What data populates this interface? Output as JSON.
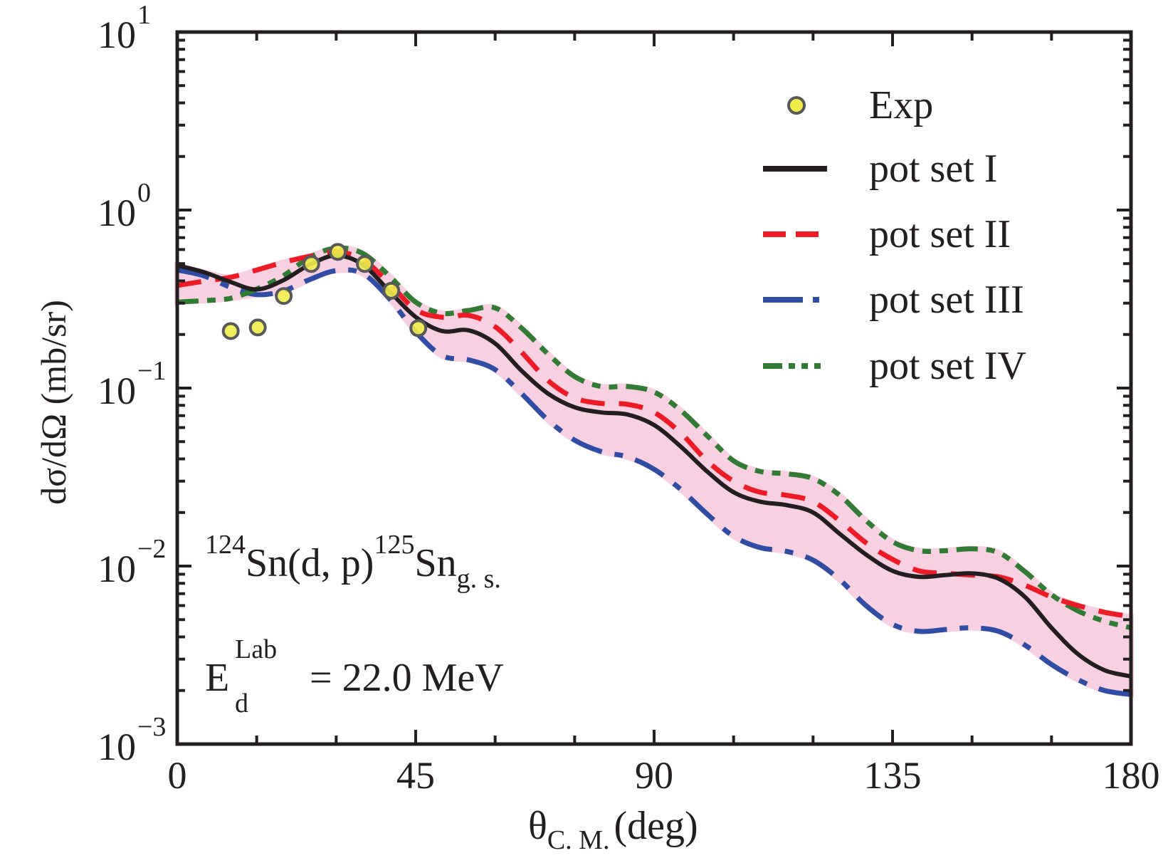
{
  "chart_data": {
    "type": "line",
    "title": "",
    "xlabel": {
      "main": "θ",
      "sub": "C. M.",
      "unit": "(deg)"
    },
    "ylabel": "dσ/dΩ (mb/sr)",
    "xlim": [
      0,
      180
    ],
    "ylim": [
      0.001,
      10
    ],
    "yscale": "log",
    "grid": false,
    "legend_position": "top-right",
    "x_ticks": [
      {
        "value": 0,
        "label": "0"
      },
      {
        "value": 45,
        "label": "45"
      },
      {
        "value": 90,
        "label": "90"
      },
      {
        "value": 135,
        "label": "135"
      },
      {
        "value": 180,
        "label": "180"
      }
    ],
    "y_ticks": [
      {
        "value": 10,
        "base": "10",
        "exp": "1"
      },
      {
        "value": 1,
        "base": "10",
        "exp": "0"
      },
      {
        "value": 0.1,
        "base": "10",
        "exp": "−1"
      },
      {
        "value": 0.01,
        "base": "10",
        "exp": "−2"
      },
      {
        "value": 0.001,
        "base": "10",
        "exp": "−3"
      }
    ],
    "annotations": {
      "reaction": {
        "pre_sup": "124",
        "main": "Sn(d, p)",
        "mid_sup": "125",
        "main2": "Sn",
        "sub": "g. s."
      },
      "energy": {
        "sym": "E",
        "sup": "Lab",
        "sub": "d",
        "value": "= 22.0 MeV"
      }
    },
    "band": {
      "description": "uncertainty band between pot set III and pot set IV",
      "color": "#f9d0e1"
    },
    "x": [
      0,
      5,
      10,
      15,
      20,
      25,
      30,
      35,
      40,
      45,
      50,
      55,
      60,
      65,
      70,
      75,
      80,
      85,
      90,
      95,
      100,
      105,
      110,
      115,
      120,
      125,
      130,
      135,
      140,
      145,
      150,
      155,
      160,
      165,
      170,
      175,
      180
    ],
    "series": [
      {
        "name": "pot set I",
        "style": "solid",
        "color": "#231f20",
        "values": [
          0.489,
          0.448,
          0.395,
          0.358,
          0.403,
          0.494,
          0.555,
          0.494,
          0.351,
          0.251,
          0.209,
          0.211,
          0.178,
          0.125,
          0.093,
          0.078,
          0.073,
          0.071,
          0.062,
          0.047,
          0.034,
          0.026,
          0.023,
          0.022,
          0.02,
          0.0152,
          0.0116,
          0.0094,
          0.0087,
          0.0089,
          0.0091,
          0.0085,
          0.0067,
          0.0045,
          0.0032,
          0.0026,
          0.0024
        ]
      },
      {
        "name": "pot set II",
        "style": "dashed",
        "color": "#ed1c24",
        "values": [
          0.377,
          0.398,
          0.419,
          0.46,
          0.508,
          0.55,
          0.582,
          0.528,
          0.388,
          0.276,
          0.25,
          0.256,
          0.221,
          0.159,
          0.11,
          0.088,
          0.082,
          0.081,
          0.073,
          0.056,
          0.039,
          0.03,
          0.026,
          0.025,
          0.023,
          0.018,
          0.0135,
          0.0109,
          0.0094,
          0.0091,
          0.0089,
          0.0087,
          0.0078,
          0.0067,
          0.006,
          0.0055,
          0.0052
        ]
      },
      {
        "name": "pot set III",
        "style": "dash-dot",
        "color": "#2e4ea5",
        "values": [
          0.461,
          0.427,
          0.369,
          0.335,
          0.351,
          0.407,
          0.457,
          0.44,
          0.319,
          0.207,
          0.152,
          0.144,
          0.127,
          0.093,
          0.066,
          0.051,
          0.044,
          0.041,
          0.035,
          0.027,
          0.0196,
          0.0147,
          0.0127,
          0.0121,
          0.0108,
          0.0084,
          0.006,
          0.0047,
          0.0043,
          0.0044,
          0.0045,
          0.0043,
          0.0036,
          0.0028,
          0.0023,
          0.002,
          0.0019
        ]
      },
      {
        "name": "pot set IV",
        "style": "dash-dot-dot",
        "color": "#2e7d32",
        "values": [
          0.304,
          0.31,
          0.319,
          0.36,
          0.427,
          0.543,
          0.611,
          0.571,
          0.427,
          0.304,
          0.263,
          0.273,
          0.282,
          0.217,
          0.155,
          0.116,
          0.102,
          0.102,
          0.095,
          0.075,
          0.054,
          0.039,
          0.034,
          0.033,
          0.031,
          0.025,
          0.018,
          0.0137,
          0.0122,
          0.0122,
          0.0125,
          0.0119,
          0.0093,
          0.0069,
          0.0056,
          0.0049,
          0.0045
        ]
      }
    ],
    "experimental": {
      "name": "Exp",
      "fill": "#f2ec4a",
      "stroke": "#58595b",
      "points": [
        {
          "x": 10.1,
          "y": 0.209
        },
        {
          "x": 15.2,
          "y": 0.219
        },
        {
          "x": 20.1,
          "y": 0.329
        },
        {
          "x": 25.3,
          "y": 0.498
        },
        {
          "x": 30.3,
          "y": 0.582
        },
        {
          "x": 35.4,
          "y": 0.498
        },
        {
          "x": 40.4,
          "y": 0.352
        },
        {
          "x": 45.5,
          "y": 0.217
        }
      ]
    },
    "legend": [
      {
        "label": "Exp",
        "kind": "marker"
      },
      {
        "label": "pot set I",
        "kind": "line",
        "series": 0
      },
      {
        "label": "pot set II",
        "kind": "line",
        "series": 1
      },
      {
        "label": "pot set III",
        "kind": "line",
        "series": 2
      },
      {
        "label": "pot set IV",
        "kind": "line",
        "series": 3
      }
    ]
  }
}
